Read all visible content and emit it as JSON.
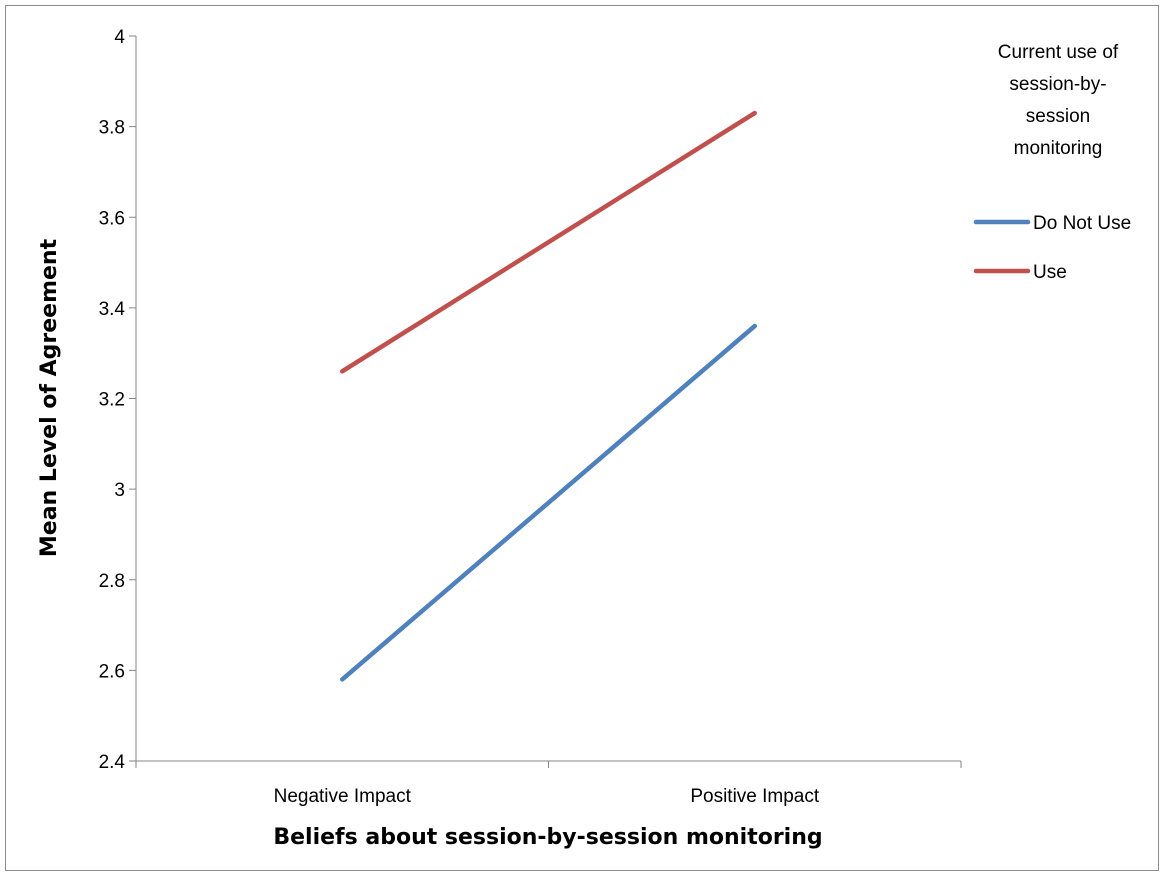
{
  "chart_data": {
    "type": "line",
    "xlabel": "Beliefs about session-by-session monitoring",
    "ylabel": "Mean Level of Agreement",
    "categories": [
      "Negative Impact",
      "Positive Impact"
    ],
    "ylim": [
      2.4,
      4
    ],
    "yticks": [
      2.4,
      2.6,
      2.8,
      3,
      3.2,
      3.4,
      3.6,
      3.8,
      4
    ],
    "ytick_labels": [
      "2.4",
      "2.6",
      "2.8",
      "3",
      "3.2",
      "3.4",
      "3.6",
      "3.8",
      "4"
    ],
    "grid": false,
    "legend": {
      "title_lines": [
        "Current use of",
        "session-by-",
        "session",
        "monitoring"
      ],
      "position": "right"
    },
    "series": [
      {
        "name": "Do Not Use",
        "color": "#4f81bd",
        "values": [
          2.58,
          3.36
        ]
      },
      {
        "name": "Use",
        "color": "#c0504d",
        "values": [
          3.26,
          3.83
        ]
      }
    ]
  }
}
